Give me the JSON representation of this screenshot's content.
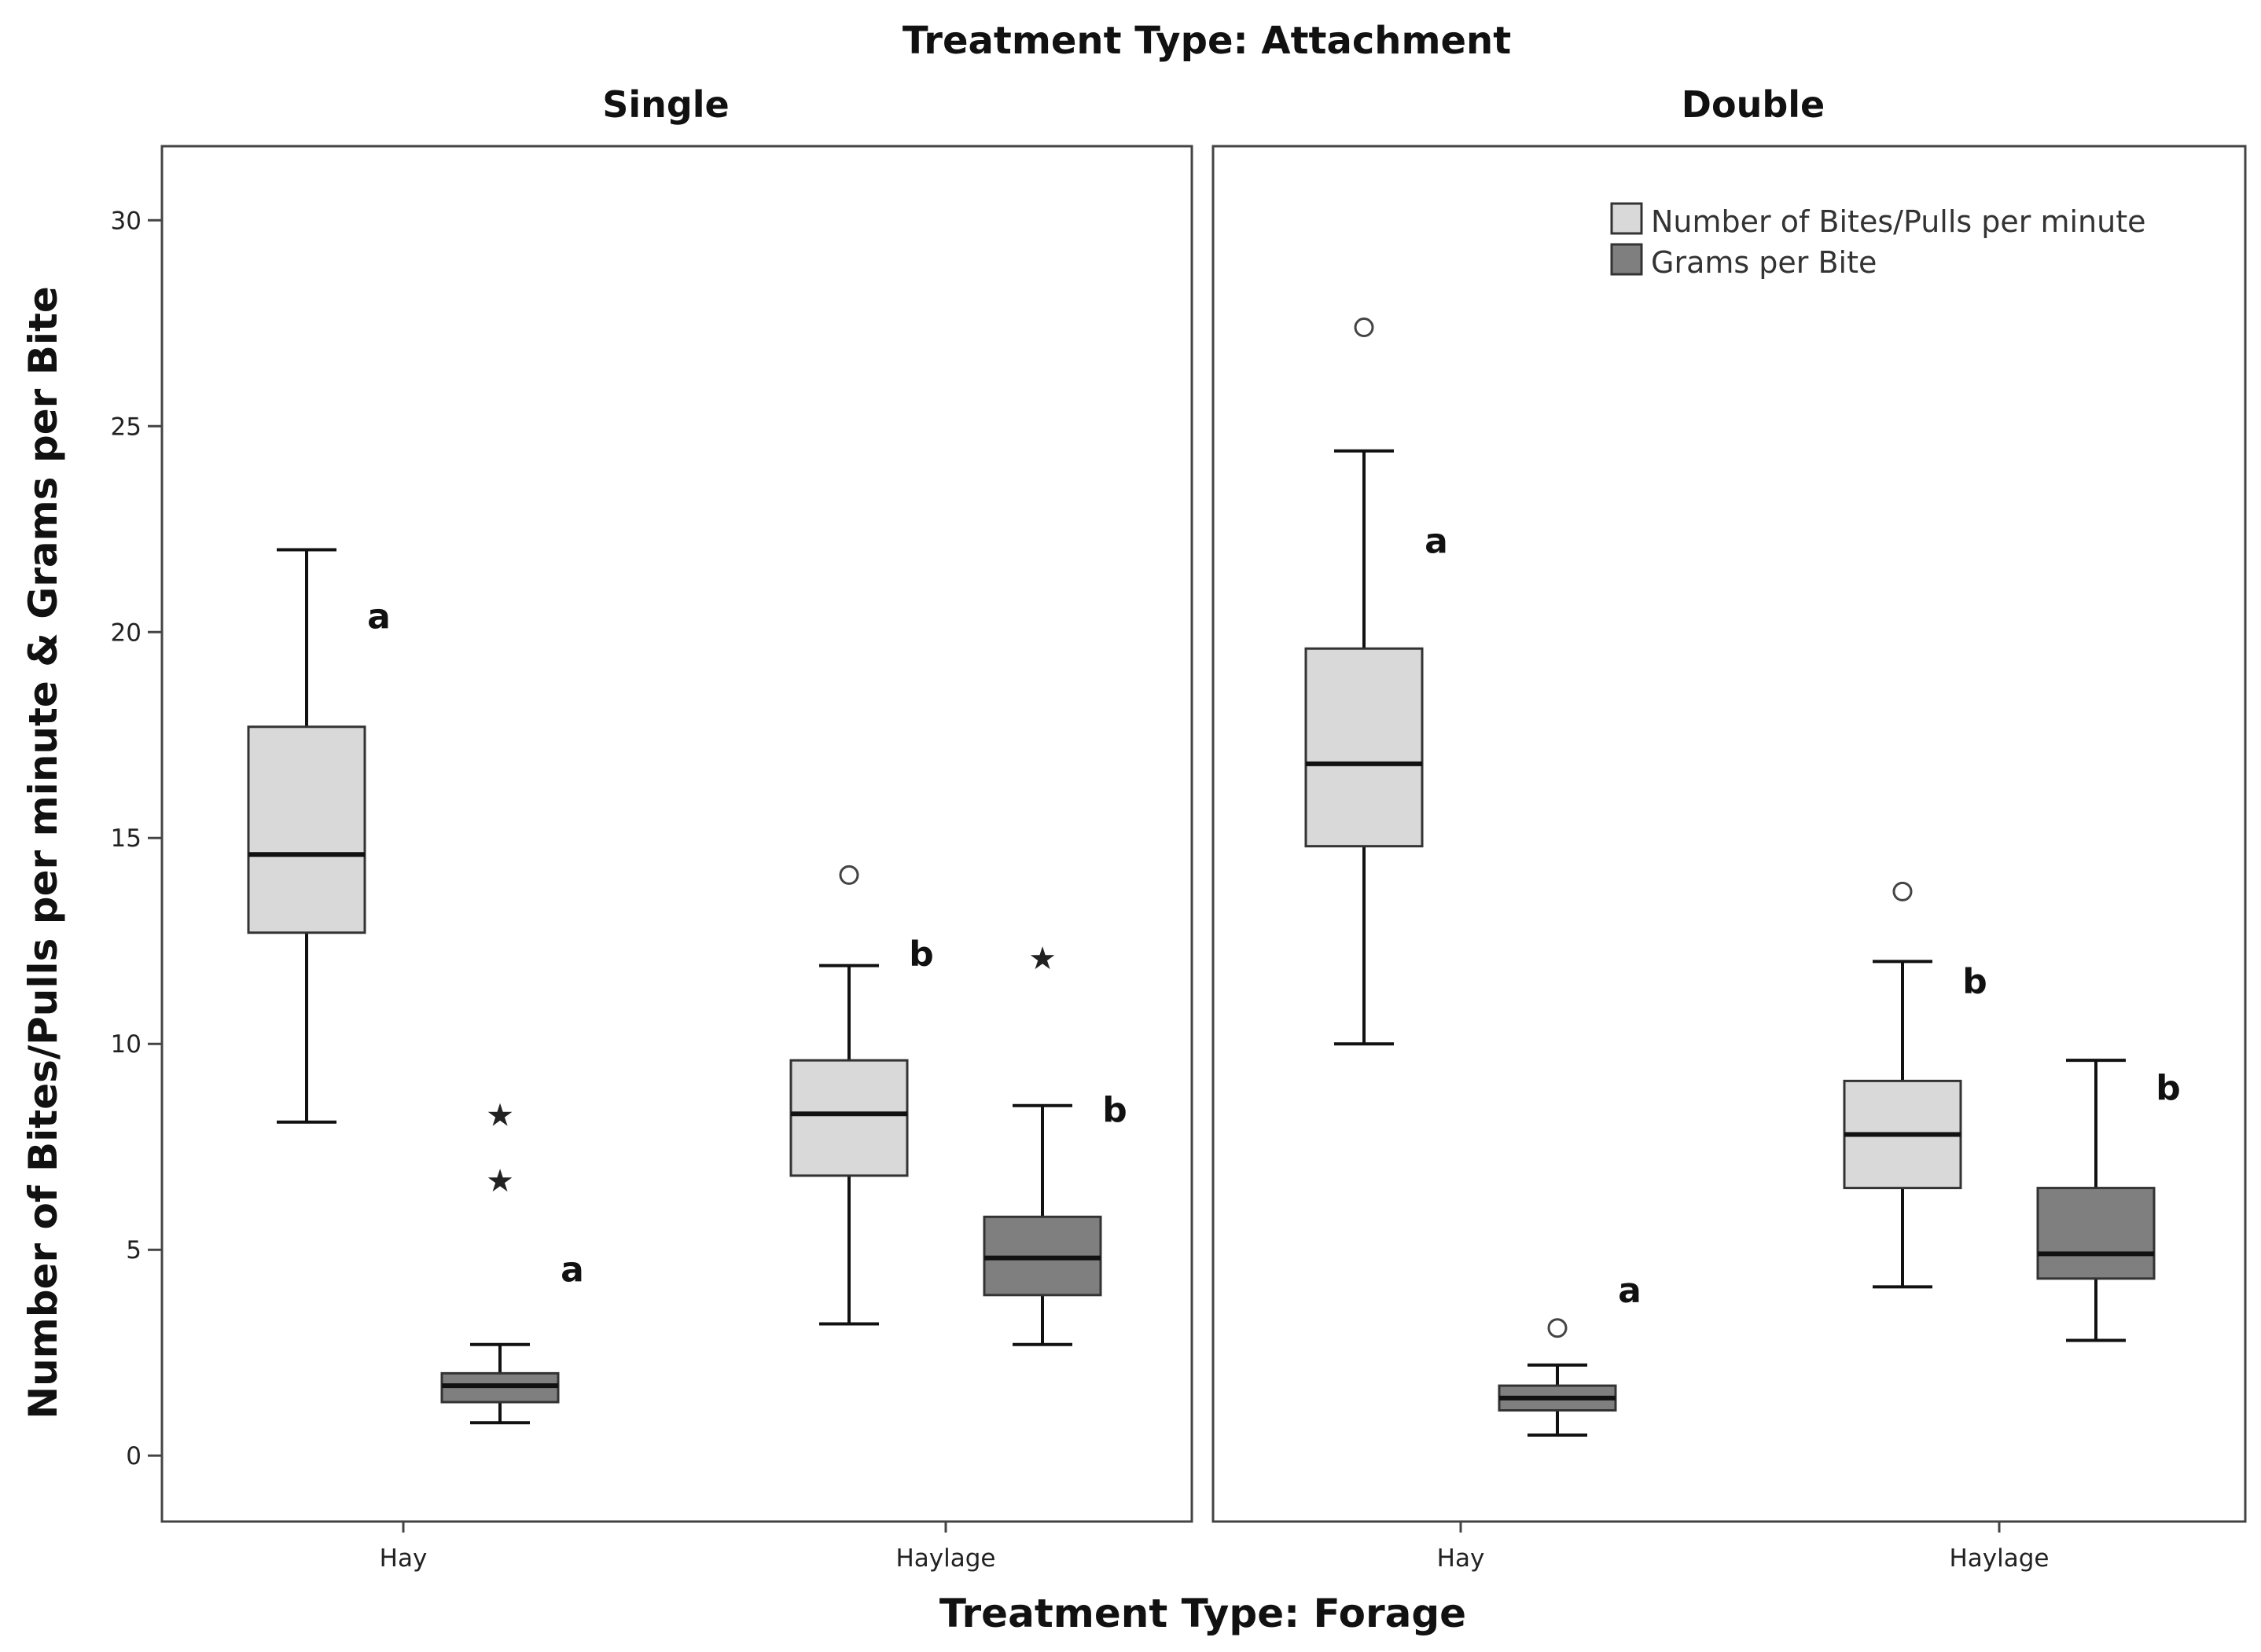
{
  "chart_data": {
    "type": "box",
    "title": "Treatment Type: Attachment",
    "xlabel": "Treatment Type: Forage",
    "ylabel": "Number of Bites/Pulls per minute & Grams per Bite",
    "ylim": [
      -1.6,
      31.8
    ],
    "yticks": [
      0,
      5,
      10,
      15,
      20,
      25,
      30
    ],
    "categories": [
      "Hay",
      "Haylage"
    ],
    "legend": {
      "position": "top-right",
      "entries": [
        {
          "name": "Number of Bites/Pulls per minute",
          "color": "#d9d9d9"
        },
        {
          "name": "Grams per Bite",
          "color": "#7f7f7f"
        }
      ]
    },
    "panels": [
      {
        "name": "Single",
        "boxes": [
          {
            "category": "Hay",
            "series": "Number of Bites/Pulls per minute",
            "whisker_low": 8.1,
            "q1": 12.7,
            "median": 14.6,
            "q3": 17.7,
            "whisker_high": 22.0,
            "outliers": [],
            "extremes": [],
            "letter": "a"
          },
          {
            "category": "Hay",
            "series": "Grams per Bite",
            "whisker_low": 0.8,
            "q1": 1.3,
            "median": 1.7,
            "q3": 2.0,
            "whisker_high": 2.7,
            "outliers": [],
            "extremes": [
              8.3,
              6.7
            ],
            "letter": "a"
          },
          {
            "category": "Haylage",
            "series": "Number of Bites/Pulls per minute",
            "whisker_low": 3.2,
            "q1": 6.8,
            "median": 8.3,
            "q3": 9.6,
            "whisker_high": 11.9,
            "outliers": [
              14.1
            ],
            "extremes": [],
            "letter": "b"
          },
          {
            "category": "Haylage",
            "series": "Grams per Bite",
            "whisker_low": 2.7,
            "q1": 3.9,
            "median": 4.8,
            "q3": 5.8,
            "whisker_high": 8.5,
            "outliers": [],
            "extremes": [
              12.1
            ],
            "letter": "b"
          }
        ]
      },
      {
        "name": "Double",
        "boxes": [
          {
            "category": "Hay",
            "series": "Number of Bites/Pulls per minute",
            "whisker_low": 10.0,
            "q1": 14.8,
            "median": 16.8,
            "q3": 19.6,
            "whisker_high": 24.4,
            "outliers": [
              27.4
            ],
            "extremes": [],
            "letter": "a"
          },
          {
            "category": "Hay",
            "series": "Grams per Bite",
            "whisker_low": 0.5,
            "q1": 1.1,
            "median": 1.4,
            "q3": 1.7,
            "whisker_high": 2.2,
            "outliers": [
              3.1
            ],
            "extremes": [],
            "letter": "a"
          },
          {
            "category": "Haylage",
            "series": "Number of Bites/Pulls per minute",
            "whisker_low": 4.1,
            "q1": 6.5,
            "median": 7.8,
            "q3": 9.1,
            "whisker_high": 12.0,
            "outliers": [
              13.7
            ],
            "extremes": [],
            "letter": "b"
          },
          {
            "category": "Haylage",
            "series": "Grams per Bite",
            "whisker_low": 2.8,
            "q1": 4.3,
            "median": 4.9,
            "q3": 6.5,
            "whisker_high": 9.6,
            "outliers": [],
            "extremes": [],
            "letter": "b"
          }
        ]
      }
    ]
  }
}
